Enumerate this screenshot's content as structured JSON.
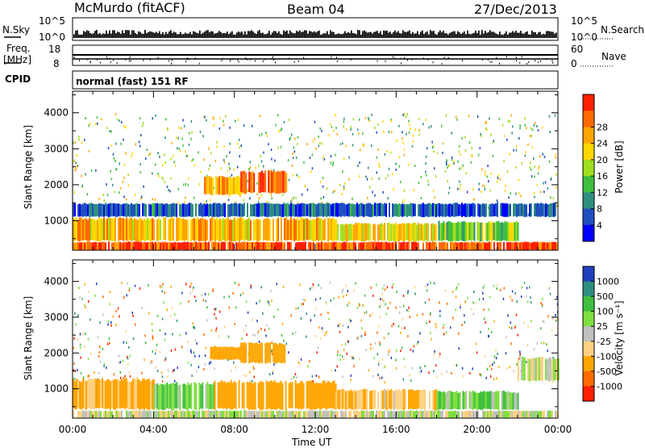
{
  "header": {
    "title_left": "McMurdo (fitACF)",
    "title_center": "Beam 04",
    "title_right": "27/Dec/2013"
  },
  "sky_panel": {
    "left_label": "N.Sky",
    "right_label": "N.Search",
    "left_ticks": [
      "10^5",
      "10^0"
    ],
    "right_ticks": [
      "10^5",
      "10^0"
    ]
  },
  "freq_panel": {
    "left_label_1": "Freq.",
    "left_label_2": "[MHz]",
    "right_label": "Nave",
    "left_ticks": [
      "18",
      "8"
    ],
    "right_ticks": [
      "60",
      "0"
    ]
  },
  "cpid": {
    "label": "CPID",
    "mode": "normal (fast) 151 RF"
  },
  "chart_data": [
    {
      "type": "heatmap",
      "name": "power",
      "ylabel": "Slant Range [km]",
      "ylim": [
        180,
        4600
      ],
      "yticks": [
        1000,
        2000,
        3000,
        4000
      ],
      "colorbar_label": "Power [dB]",
      "colorbar_ticks": [
        "4",
        "8",
        "12",
        "16",
        "20",
        "24",
        "28"
      ],
      "colorbar_colors": [
        "#0000ff",
        "#1f4fbf",
        "#2f8f7f",
        "#3fbf3f",
        "#9fdf1f",
        "#ffd700",
        "#ffa500",
        "#ff6a00",
        "#ff2000"
      ],
      "regions": [
        {
          "t0": 0.0,
          "t1": 24.0,
          "r0": 180,
          "r1": 420,
          "power": 28
        },
        {
          "t0": 0.0,
          "t1": 13.0,
          "r0": 420,
          "r1": 1100,
          "power": 22
        },
        {
          "t0": 13.0,
          "t1": 18.0,
          "r0": 420,
          "r1": 950,
          "power": 20
        },
        {
          "t0": 18.0,
          "t1": 22.0,
          "r0": 420,
          "r1": 1000,
          "power": 14
        },
        {
          "t0": 0.0,
          "t1": 24.0,
          "r0": 1100,
          "r1": 1500,
          "power": 6
        },
        {
          "t0": 6.5,
          "t1": 8.5,
          "r0": 1700,
          "r1": 2250,
          "power": 22
        },
        {
          "t0": 8.3,
          "t1": 10.6,
          "r0": 1750,
          "r1": 2400,
          "power": 28
        }
      ]
    },
    {
      "type": "heatmap",
      "name": "velocity",
      "ylabel": "Slant Range [km]",
      "ylim": [
        180,
        4600
      ],
      "yticks": [
        1000,
        2000,
        3000,
        4000
      ],
      "xlabel": "Time UT",
      "xticks": [
        "00:00",
        "04:00",
        "08:00",
        "12:00",
        "16:00",
        "20:00",
        "00:00"
      ],
      "xlim": [
        0,
        24
      ],
      "colorbar_label": "Velocity [m s⁻¹]",
      "colorbar_ticks": [
        "1000",
        "500",
        "100",
        "25",
        "-25",
        "-100",
        "-500",
        "-1000"
      ],
      "colorbar_colors": [
        "#1f3fbf",
        "#2f8f7f",
        "#3fbf3f",
        "#7fdf3f",
        "#c0c0c0",
        "#ffd080",
        "#ffa500",
        "#ff6a00",
        "#ff2000"
      ],
      "regions": [
        {
          "t0": 0.0,
          "t1": 24.0,
          "r0": 180,
          "r1": 400,
          "velocity": 0
        },
        {
          "t0": 0.0,
          "t1": 4.0,
          "r0": 400,
          "r1": 1300,
          "velocity": -120
        },
        {
          "t0": 4.0,
          "t1": 7.0,
          "r0": 400,
          "r1": 1200,
          "velocity": 80
        },
        {
          "t0": 7.0,
          "t1": 13.0,
          "r0": 400,
          "r1": 1250,
          "velocity": -180
        },
        {
          "t0": 13.0,
          "t1": 18.0,
          "r0": 400,
          "r1": 1000,
          "velocity": -100
        },
        {
          "t0": 18.0,
          "t1": 22.0,
          "r0": 400,
          "r1": 950,
          "velocity": 60
        },
        {
          "t0": 22.0,
          "t1": 24.0,
          "r0": 1200,
          "r1": 1900,
          "velocity": 0
        },
        {
          "t0": 6.8,
          "t1": 8.5,
          "r0": 1800,
          "r1": 2200,
          "velocity": -300
        },
        {
          "t0": 8.3,
          "t1": 10.5,
          "r0": 1700,
          "r1": 2300,
          "velocity": -400
        }
      ]
    }
  ]
}
